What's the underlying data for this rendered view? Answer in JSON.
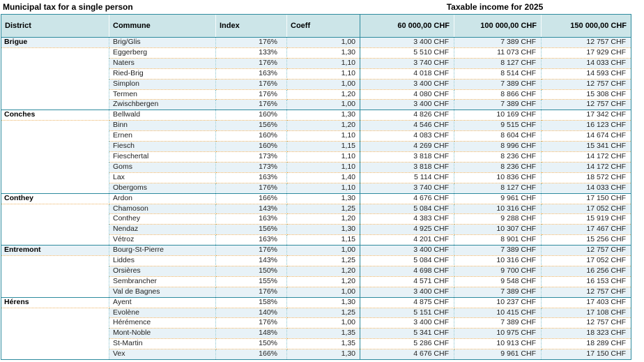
{
  "title_left": "Municipal tax for a single person",
  "title_right": "Taxable income for 2025",
  "columns": [
    "District",
    "Commune",
    "Index",
    "Coeff",
    "60 000,00 CHF",
    "100 000,00 CHF",
    "150 000,00 CHF"
  ],
  "colors": {
    "accent": "#2e8b9e",
    "header_bg": "#cce5e8",
    "band_bg": "#e8f2f7",
    "dot_orange": "#edb362",
    "dot_teal": "#7fbecb"
  },
  "groups": [
    {
      "district": "Brigue",
      "rows": [
        {
          "commune": "Brig/Glis",
          "index": "176%",
          "coeff": "1,00",
          "chf60": "3 400 CHF",
          "chf100": "7 389 CHF",
          "chf150": "12 757 CHF"
        },
        {
          "commune": "Eggerberg",
          "index": "133%",
          "coeff": "1,30",
          "chf60": "5 510 CHF",
          "chf100": "11 073 CHF",
          "chf150": "17 929 CHF"
        },
        {
          "commune": "Naters",
          "index": "176%",
          "coeff": "1,10",
          "chf60": "3 740 CHF",
          "chf100": "8 127 CHF",
          "chf150": "14 033 CHF"
        },
        {
          "commune": "Ried-Brig",
          "index": "163%",
          "coeff": "1,10",
          "chf60": "4 018 CHF",
          "chf100": "8 514 CHF",
          "chf150": "14 593 CHF"
        },
        {
          "commune": "Simplon",
          "index": "176%",
          "coeff": "1,00",
          "chf60": "3 400 CHF",
          "chf100": "7 389 CHF",
          "chf150": "12 757 CHF"
        },
        {
          "commune": "Termen",
          "index": "176%",
          "coeff": "1,20",
          "chf60": "4 080 CHF",
          "chf100": "8 866 CHF",
          "chf150": "15 308 CHF"
        },
        {
          "commune": "Zwischbergen",
          "index": "176%",
          "coeff": "1,00",
          "chf60": "3 400 CHF",
          "chf100": "7 389 CHF",
          "chf150": "12 757 CHF"
        }
      ]
    },
    {
      "district": "Conches",
      "rows": [
        {
          "commune": "Bellwald",
          "index": "160%",
          "coeff": "1,30",
          "chf60": "4 826 CHF",
          "chf100": "10 169 CHF",
          "chf150": "17 342 CHF"
        },
        {
          "commune": "Binn",
          "index": "156%",
          "coeff": "1,20",
          "chf60": "4 546 CHF",
          "chf100": "9 515 CHF",
          "chf150": "16 123 CHF"
        },
        {
          "commune": "Ernen",
          "index": "160%",
          "coeff": "1,10",
          "chf60": "4 083 CHF",
          "chf100": "8 604 CHF",
          "chf150": "14 674 CHF"
        },
        {
          "commune": "Fiesch",
          "index": "160%",
          "coeff": "1,15",
          "chf60": "4 269 CHF",
          "chf100": "8 996 CHF",
          "chf150": "15 341 CHF"
        },
        {
          "commune": "Fieschertal",
          "index": "173%",
          "coeff": "1,10",
          "chf60": "3 818 CHF",
          "chf100": "8 236 CHF",
          "chf150": "14 172 CHF"
        },
        {
          "commune": "Goms",
          "index": "173%",
          "coeff": "1,10",
          "chf60": "3 818 CHF",
          "chf100": "8 236 CHF",
          "chf150": "14 172 CHF"
        },
        {
          "commune": "Lax",
          "index": "163%",
          "coeff": "1,40",
          "chf60": "5 114 CHF",
          "chf100": "10 836 CHF",
          "chf150": "18 572 CHF"
        },
        {
          "commune": "Obergoms",
          "index": "176%",
          "coeff": "1,10",
          "chf60": "3 740 CHF",
          "chf100": "8 127 CHF",
          "chf150": "14 033 CHF"
        }
      ]
    },
    {
      "district": "Conthey",
      "rows": [
        {
          "commune": "Ardon",
          "index": "166%",
          "coeff": "1,30",
          "chf60": "4 676 CHF",
          "chf100": "9 961 CHF",
          "chf150": "17 150 CHF"
        },
        {
          "commune": "Chamoson",
          "index": "143%",
          "coeff": "1,25",
          "chf60": "5 084 CHF",
          "chf100": "10 316 CHF",
          "chf150": "17 052 CHF"
        },
        {
          "commune": "Conthey",
          "index": "163%",
          "coeff": "1,20",
          "chf60": "4 383 CHF",
          "chf100": "9 288 CHF",
          "chf150": "15 919 CHF"
        },
        {
          "commune": "Nendaz",
          "index": "156%",
          "coeff": "1,30",
          "chf60": "4 925 CHF",
          "chf100": "10 307 CHF",
          "chf150": "17 467 CHF"
        },
        {
          "commune": "Vétroz",
          "index": "163%",
          "coeff": "1,15",
          "chf60": "4 201 CHF",
          "chf100": "8 901 CHF",
          "chf150": "15 256 CHF"
        }
      ]
    },
    {
      "district": "Entremont",
      "rows": [
        {
          "commune": "Bourg-St-Pierre",
          "index": "176%",
          "coeff": "1,00",
          "chf60": "3 400 CHF",
          "chf100": "7 389 CHF",
          "chf150": "12 757 CHF"
        },
        {
          "commune": "Liddes",
          "index": "143%",
          "coeff": "1,25",
          "chf60": "5 084 CHF",
          "chf100": "10 316 CHF",
          "chf150": "17 052 CHF"
        },
        {
          "commune": "Orsières",
          "index": "150%",
          "coeff": "1,20",
          "chf60": "4 698 CHF",
          "chf100": "9 700 CHF",
          "chf150": "16 256 CHF"
        },
        {
          "commune": "Sembrancher",
          "index": "155%",
          "coeff": "1,20",
          "chf60": "4 571 CHF",
          "chf100": "9 548 CHF",
          "chf150": "16 153 CHF"
        },
        {
          "commune": "Val de Bagnes",
          "index": "176%",
          "coeff": "1,00",
          "chf60": "3 400 CHF",
          "chf100": "7 389 CHF",
          "chf150": "12 757 CHF"
        }
      ]
    },
    {
      "district": "Hérens",
      "rows": [
        {
          "commune": "Ayent",
          "index": "158%",
          "coeff": "1,30",
          "chf60": "4 875 CHF",
          "chf100": "10 237 CHF",
          "chf150": "17 403 CHF"
        },
        {
          "commune": "Evolène",
          "index": "140%",
          "coeff": "1,25",
          "chf60": "5 151 CHF",
          "chf100": "10 415 CHF",
          "chf150": "17 108 CHF"
        },
        {
          "commune": "Hérémence",
          "index": "176%",
          "coeff": "1,00",
          "chf60": "3 400 CHF",
          "chf100": "7 389 CHF",
          "chf150": "12 757 CHF"
        },
        {
          "commune": "Mont-Noble",
          "index": "148%",
          "coeff": "1,35",
          "chf60": "5 341 CHF",
          "chf100": "10 975 CHF",
          "chf150": "18 323 CHF"
        },
        {
          "commune": "St-Martin",
          "index": "150%",
          "coeff": "1,35",
          "chf60": "5 286 CHF",
          "chf100": "10 913 CHF",
          "chf150": "18 289 CHF"
        },
        {
          "commune": "Vex",
          "index": "166%",
          "coeff": "1,30",
          "chf60": "4 676 CHF",
          "chf100": "9 961 CHF",
          "chf150": "17 150 CHF"
        }
      ]
    }
  ]
}
